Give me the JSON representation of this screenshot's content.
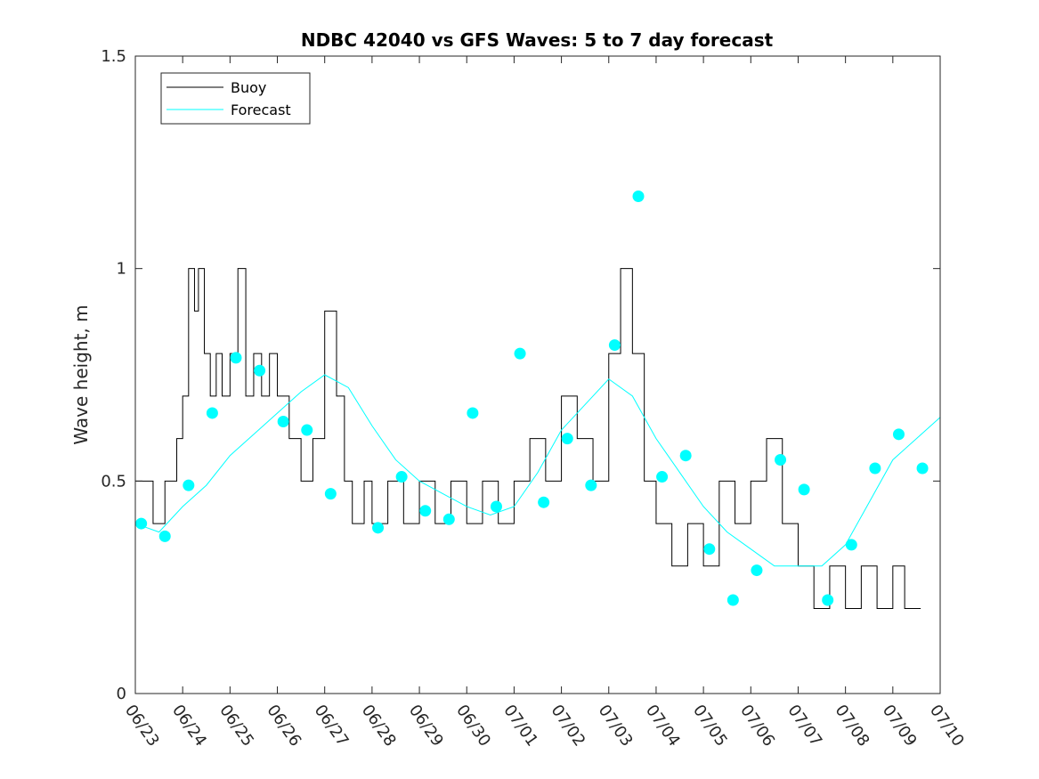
{
  "chart_data": {
    "type": "line",
    "title": "NDBC 42040 vs GFS Waves: 5 to 7 day forecast",
    "xlabel": "",
    "ylabel": "Wave height, m",
    "x_start": "06/23",
    "x_end": "07/10",
    "xtick_labels": [
      "06/23",
      "06/24",
      "06/25",
      "06/26",
      "06/27",
      "06/28",
      "06/29",
      "06/30",
      "07/01",
      "07/02",
      "07/03",
      "07/04",
      "07/05",
      "07/06",
      "07/07",
      "07/08",
      "07/09",
      "07/10"
    ],
    "ylim": [
      0,
      1.5
    ],
    "yticks": [
      0,
      0.5,
      1,
      1.5
    ],
    "ytick_labels": [
      "0",
      "0.5",
      "1",
      "1.5"
    ],
    "grid": false,
    "legend": "top-left",
    "legend_entries": [
      "Buoy",
      "Forecast"
    ],
    "colors": {
      "buoy": "#000000",
      "forecast": "#00ffff",
      "axis": "#262626"
    },
    "series": [
      {
        "name": "Buoy",
        "style": "step",
        "points": [
          [
            "06/23 00:00",
            0.5
          ],
          [
            "06/23 09:00",
            0.4
          ],
          [
            "06/23 15:00",
            0.5
          ],
          [
            "06/23 21:00",
            0.6
          ],
          [
            "06/24 00:00",
            0.7
          ],
          [
            "06/24 03:00",
            1.0
          ],
          [
            "06/24 06:00",
            0.9
          ],
          [
            "06/24 08:00",
            1.0
          ],
          [
            "06/24 11:00",
            0.8
          ],
          [
            "06/24 14:00",
            0.7
          ],
          [
            "06/24 17:00",
            0.8
          ],
          [
            "06/24 20:00",
            0.7
          ],
          [
            "06/25 00:00",
            0.8
          ],
          [
            "06/25 04:00",
            1.0
          ],
          [
            "06/25 08:00",
            0.7
          ],
          [
            "06/25 12:00",
            0.8
          ],
          [
            "06/25 16:00",
            0.7
          ],
          [
            "06/25 20:00",
            0.8
          ],
          [
            "06/26 00:00",
            0.7
          ],
          [
            "06/26 06:00",
            0.6
          ],
          [
            "06/26 12:00",
            0.5
          ],
          [
            "06/26 18:00",
            0.6
          ],
          [
            "06/27 00:00",
            0.9
          ],
          [
            "06/27 06:00",
            0.7
          ],
          [
            "06/27 10:00",
            0.5
          ],
          [
            "06/27 14:00",
            0.4
          ],
          [
            "06/27 20:00",
            0.5
          ],
          [
            "06/28 00:00",
            0.4
          ],
          [
            "06/28 08:00",
            0.5
          ],
          [
            "06/28 16:00",
            0.4
          ],
          [
            "06/29 00:00",
            0.5
          ],
          [
            "06/29 08:00",
            0.4
          ],
          [
            "06/29 16:00",
            0.5
          ],
          [
            "06/30 00:00",
            0.4
          ],
          [
            "06/30 08:00",
            0.5
          ],
          [
            "06/30 16:00",
            0.4
          ],
          [
            "07/01 00:00",
            0.5
          ],
          [
            "07/01 08:00",
            0.6
          ],
          [
            "07/01 16:00",
            0.5
          ],
          [
            "07/02 00:00",
            0.7
          ],
          [
            "07/02 08:00",
            0.6
          ],
          [
            "07/02 16:00",
            0.5
          ],
          [
            "07/03 00:00",
            0.8
          ],
          [
            "07/03 06:00",
            1.0
          ],
          [
            "07/03 12:00",
            0.8
          ],
          [
            "07/03 18:00",
            0.5
          ],
          [
            "07/04 00:00",
            0.4
          ],
          [
            "07/04 08:00",
            0.3
          ],
          [
            "07/04 16:00",
            0.4
          ],
          [
            "07/05 00:00",
            0.3
          ],
          [
            "07/05 08:00",
            0.5
          ],
          [
            "07/05 16:00",
            0.4
          ],
          [
            "07/06 00:00",
            0.5
          ],
          [
            "07/06 08:00",
            0.6
          ],
          [
            "07/06 16:00",
            0.4
          ],
          [
            "07/07 00:00",
            0.3
          ],
          [
            "07/07 08:00",
            0.2
          ],
          [
            "07/07 16:00",
            0.3
          ],
          [
            "07/08 00:00",
            0.2
          ],
          [
            "07/08 08:00",
            0.3
          ],
          [
            "07/08 16:00",
            0.2
          ],
          [
            "07/09 00:00",
            0.3
          ],
          [
            "07/09 06:00",
            0.2
          ]
        ]
      },
      {
        "name": "Forecast",
        "style": "line",
        "points": [
          [
            "06/23 00:00",
            0.4
          ],
          [
            "06/23 12:00",
            0.38
          ],
          [
            "06/24 00:00",
            0.44
          ],
          [
            "06/24 12:00",
            0.49
          ],
          [
            "06/25 00:00",
            0.56
          ],
          [
            "06/25 12:00",
            0.61
          ],
          [
            "06/26 00:00",
            0.66
          ],
          [
            "06/26 12:00",
            0.71
          ],
          [
            "06/27 00:00",
            0.75
          ],
          [
            "06/27 12:00",
            0.72
          ],
          [
            "06/28 00:00",
            0.63
          ],
          [
            "06/28 12:00",
            0.55
          ],
          [
            "06/29 00:00",
            0.5
          ],
          [
            "06/29 12:00",
            0.47
          ],
          [
            "06/30 00:00",
            0.44
          ],
          [
            "06/30 12:00",
            0.42
          ],
          [
            "07/01 00:00",
            0.44
          ],
          [
            "07/01 12:00",
            0.52
          ],
          [
            "07/02 00:00",
            0.62
          ],
          [
            "07/02 12:00",
            0.68
          ],
          [
            "07/03 00:00",
            0.74
          ],
          [
            "07/03 12:00",
            0.7
          ],
          [
            "07/04 00:00",
            0.6
          ],
          [
            "07/04 12:00",
            0.52
          ],
          [
            "07/05 00:00",
            0.44
          ],
          [
            "07/05 12:00",
            0.38
          ],
          [
            "07/06 00:00",
            0.34
          ],
          [
            "07/06 12:00",
            0.3
          ],
          [
            "07/07 00:00",
            0.3
          ],
          [
            "07/07 12:00",
            0.3
          ],
          [
            "07/08 00:00",
            0.35
          ],
          [
            "07/08 12:00",
            0.45
          ],
          [
            "07/09 00:00",
            0.55
          ],
          [
            "07/09 12:00",
            0.6
          ],
          [
            "07/10 00:00",
            0.65
          ]
        ],
        "markers": [
          [
            "06/23 03:00",
            0.4
          ],
          [
            "06/23 15:00",
            0.37
          ],
          [
            "06/24 03:00",
            0.49
          ],
          [
            "06/24 15:00",
            0.66
          ],
          [
            "06/25 03:00",
            0.79
          ],
          [
            "06/25 15:00",
            0.76
          ],
          [
            "06/26 03:00",
            0.64
          ],
          [
            "06/26 15:00",
            0.62
          ],
          [
            "06/27 03:00",
            0.47
          ],
          [
            "06/28 03:00",
            0.39
          ],
          [
            "06/28 15:00",
            0.51
          ],
          [
            "06/29 03:00",
            0.43
          ],
          [
            "06/29 15:00",
            0.41
          ],
          [
            "06/30 03:00",
            0.66
          ],
          [
            "06/30 15:00",
            0.44
          ],
          [
            "07/01 03:00",
            0.8
          ],
          [
            "07/01 15:00",
            0.45
          ],
          [
            "07/02 03:00",
            0.6
          ],
          [
            "07/02 15:00",
            0.49
          ],
          [
            "07/03 03:00",
            0.82
          ],
          [
            "07/03 15:00",
            1.17
          ],
          [
            "07/04 03:00",
            0.51
          ],
          [
            "07/04 15:00",
            0.56
          ],
          [
            "07/05 03:00",
            0.34
          ],
          [
            "07/05 15:00",
            0.22
          ],
          [
            "07/06 03:00",
            0.29
          ],
          [
            "07/06 15:00",
            0.55
          ],
          [
            "07/07 03:00",
            0.48
          ],
          [
            "07/07 15:00",
            0.22
          ],
          [
            "07/08 03:00",
            0.35
          ],
          [
            "07/08 15:00",
            0.53
          ],
          [
            "07/09 03:00",
            0.61
          ],
          [
            "07/09 15:00",
            0.53
          ]
        ]
      }
    ]
  }
}
